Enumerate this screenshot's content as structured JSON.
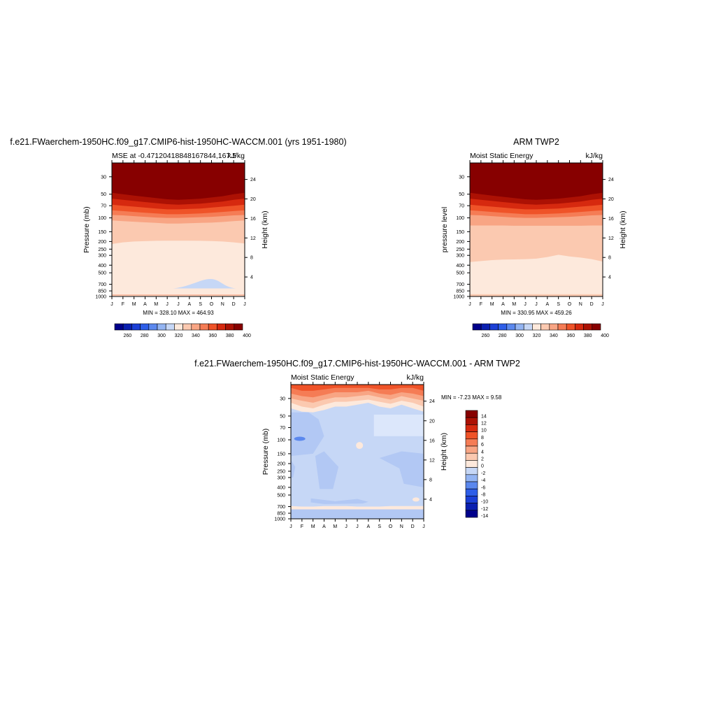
{
  "chart_data": [
    {
      "type": "heatmap",
      "title": "f.e21.FWaerchem-1950HC.f09_g17.CMIP6-hist-1950HC-WACCM.001 (yrs 1951-1980)",
      "subtitle_left": "MSE at -0.47120418848167844,167.5",
      "subtitle_right": "kJ/kg",
      "ylabel": "Pressure (mb)",
      "ylabel_right": "Height (km)",
      "x_ticks": [
        "J",
        "F",
        "M",
        "A",
        "M",
        "J",
        "J",
        "A",
        "S",
        "O",
        "N",
        "D",
        "J"
      ],
      "y_ticks": [
        "30",
        "50",
        "70",
        "100",
        "150",
        "200",
        "250",
        "300",
        "400",
        "500",
        "700",
        "850",
        "1000"
      ],
      "y_values": [
        30,
        50,
        70,
        100,
        150,
        200,
        250,
        300,
        400,
        500,
        700,
        850,
        1000
      ],
      "y_scale": "log",
      "ylim": [
        1000,
        20
      ],
      "height_ticks": [
        "24",
        "20",
        "16",
        "12",
        "8",
        "4"
      ],
      "stats": "MIN = 328.10 MAX = 464.93",
      "colorbar": {
        "levels": [
          "260",
          "280",
          "300",
          "320",
          "340",
          "360",
          "380",
          "400"
        ],
        "colors": [
          "#00008b",
          "#0a1fb0",
          "#1b3fd6",
          "#2e5ee8",
          "#5b88ee",
          "#93b4f2",
          "#c6d7f6",
          "#fde9dc",
          "#fbc9b0",
          "#f8a584",
          "#f57c55",
          "#ef5328",
          "#d6290f",
          "#ac1104",
          "#870000"
        ]
      },
      "contour_levels": [
        320,
        330,
        340,
        350,
        360,
        370,
        380,
        390,
        400,
        410
      ],
      "fill_bands": [
        {
          "range": "<340",
          "color": "#c6d7f6"
        },
        {
          "range": "340-350",
          "color": "#fde9dc"
        },
        {
          "range": "350-360",
          "color": "#fbc9b0"
        },
        {
          "range": "360-370",
          "color": "#f8a584"
        },
        {
          "range": "370-380",
          "color": "#f57c55"
        },
        {
          "range": "380-390",
          "color": "#ef5328"
        },
        {
          "range": "390-400",
          "color": "#d6290f"
        },
        {
          "range": ">400",
          "color": "#870000"
        }
      ]
    },
    {
      "type": "heatmap",
      "title": "ARM TWP2",
      "subtitle_left": "Moist Static Energy",
      "subtitle_right": "kJ/kg",
      "ylabel": "pressure level",
      "ylabel_right": "Height (km)",
      "x_ticks": [
        "J",
        "F",
        "M",
        "A",
        "M",
        "J",
        "J",
        "A",
        "S",
        "O",
        "N",
        "D",
        "J"
      ],
      "y_ticks": [
        "30",
        "50",
        "70",
        "100",
        "150",
        "200",
        "250",
        "300",
        "400",
        "500",
        "700",
        "850",
        "1000"
      ],
      "y_values": [
        30,
        50,
        70,
        100,
        150,
        200,
        250,
        300,
        400,
        500,
        700,
        850,
        1000
      ],
      "y_scale": "log",
      "ylim": [
        1000,
        20
      ],
      "height_ticks": [
        "24",
        "20",
        "16",
        "12",
        "8",
        "4"
      ],
      "stats": "MIN = 330.95 MAX = 459.26",
      "colorbar": {
        "levels": [
          "260",
          "280",
          "300",
          "320",
          "340",
          "360",
          "380",
          "400"
        ],
        "colors": [
          "#00008b",
          "#0a1fb0",
          "#1b3fd6",
          "#2e5ee8",
          "#5b88ee",
          "#93b4f2",
          "#c6d7f6",
          "#fde9dc",
          "#fbc9b0",
          "#f8a584",
          "#f57c55",
          "#ef5328",
          "#d6290f",
          "#ac1104",
          "#870000"
        ]
      }
    },
    {
      "type": "heatmap",
      "title": "f.e21.FWaerchem-1950HC.f09_g17.CMIP6-hist-1950HC-WACCM.001 - ARM TWP2",
      "subtitle_left": "Moist Static Energy",
      "subtitle_right": "kJ/kg",
      "ylabel": "Pressure (mb)",
      "ylabel_right": "Height (km)",
      "x_ticks": [
        "J",
        "F",
        "M",
        "A",
        "M",
        "J",
        "J",
        "A",
        "S",
        "O",
        "N",
        "D",
        "J"
      ],
      "y_ticks": [
        "30",
        "50",
        "70",
        "100",
        "150",
        "200",
        "250",
        "300",
        "400",
        "500",
        "700",
        "850",
        "1000"
      ],
      "y_values": [
        30,
        50,
        70,
        100,
        150,
        200,
        250,
        300,
        400,
        500,
        700,
        850,
        1000
      ],
      "y_scale": "log",
      "ylim": [
        1000,
        20
      ],
      "height_ticks": [
        "24",
        "20",
        "16",
        "12",
        "8",
        "4"
      ],
      "stats": "MIN =  -7.23 MAX =   9.58",
      "colorbar": {
        "levels": [
          "14",
          "12",
          "10",
          "8",
          "6",
          "4",
          "2",
          "0",
          "-2",
          "-4",
          "-6",
          "-8",
          "-10",
          "-12",
          "-14"
        ],
        "colors": [
          "#870000",
          "#ac1104",
          "#d6290f",
          "#ef5328",
          "#f57c55",
          "#f8a584",
          "#fbc9b0",
          "#fde9dc",
          "#c6d7f6",
          "#93b4f2",
          "#5b88ee",
          "#2e5ee8",
          "#1b3fd6",
          "#0a1fb0",
          "#00008b"
        ]
      }
    }
  ]
}
